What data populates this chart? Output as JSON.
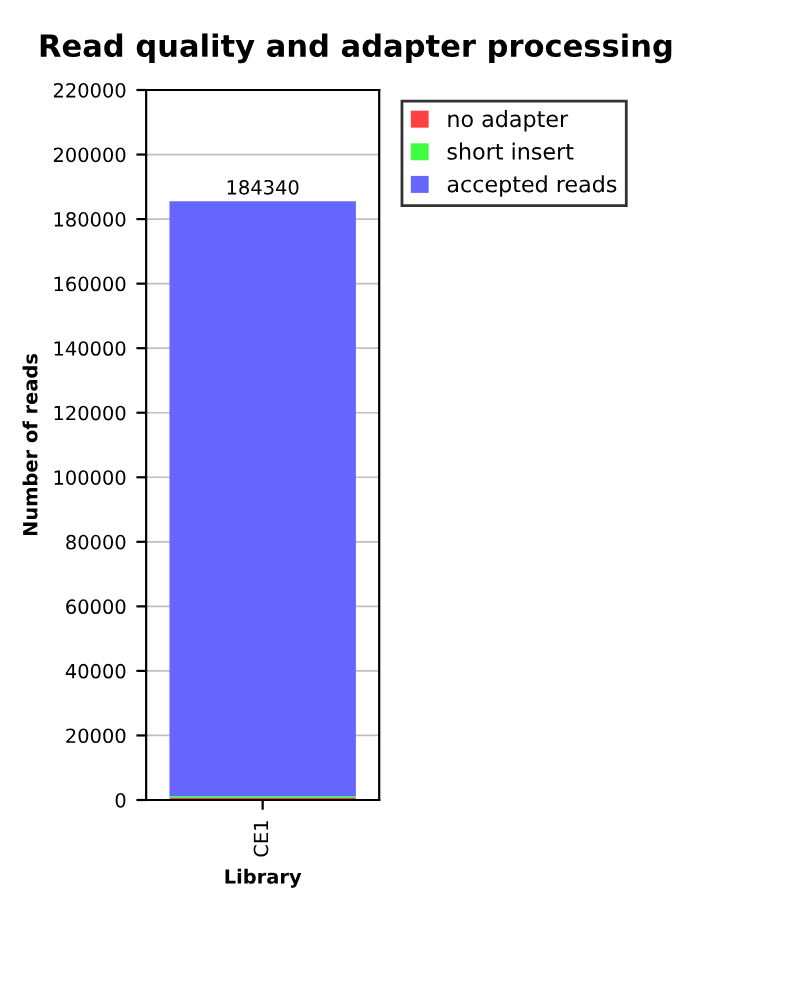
{
  "chart_data": {
    "type": "bar",
    "title": "Read quality and adapter processing",
    "xlabel": "Library",
    "ylabel": "Number of reads",
    "categories": [
      "CE1"
    ],
    "stacked": true,
    "series": [
      {
        "name": "no adapter",
        "color": "#ff4040",
        "values": [
          600
        ]
      },
      {
        "name": "short insert",
        "color": "#40ff40",
        "values": [
          600
        ]
      },
      {
        "name": "accepted reads",
        "color": "#6666ff",
        "values": [
          184340
        ],
        "value_labels": [
          "184340"
        ]
      }
    ],
    "ylim": [
      0,
      220000
    ],
    "yticks": [
      0,
      20000,
      40000,
      60000,
      80000,
      100000,
      120000,
      140000,
      160000,
      180000,
      200000,
      220000
    ],
    "grid": "y",
    "legend": "top right"
  }
}
